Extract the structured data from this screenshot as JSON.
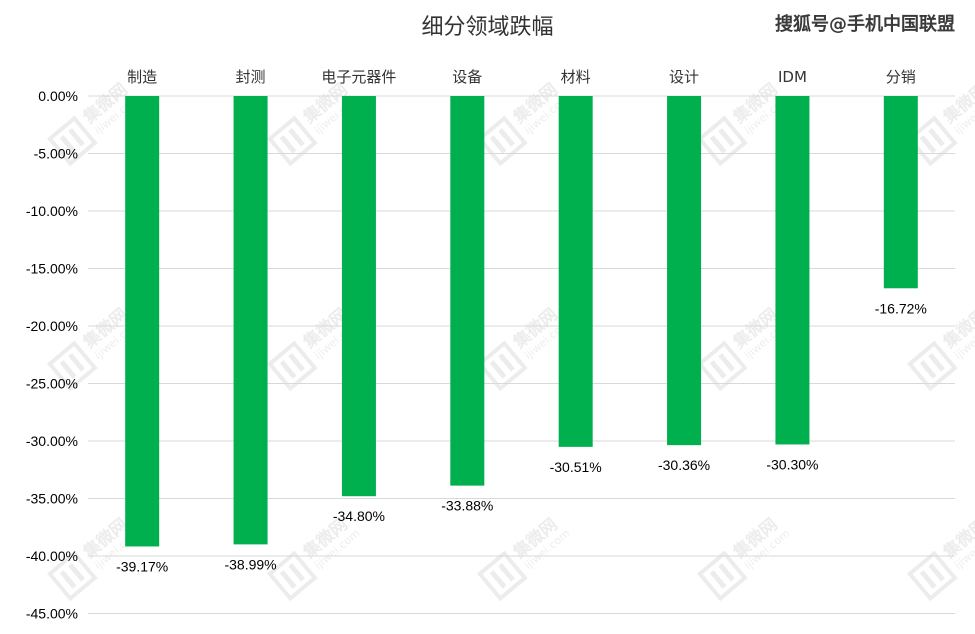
{
  "source": "搜狐号@手机中国联盟",
  "watermark": {
    "label": "集微网",
    "url": "ijiwei.com"
  },
  "colors": {
    "bar": "#00b04f",
    "grid": "#d9d9d9",
    "text": "#000000"
  },
  "chart_data": {
    "type": "bar",
    "title": "细分领域跌幅",
    "xlabel": "",
    "ylabel": "",
    "categories": [
      "制造",
      "封测",
      "电子元器件",
      "设备",
      "材料",
      "设计",
      "IDM",
      "分销"
    ],
    "values": [
      -39.17,
      -38.99,
      -34.8,
      -33.88,
      -30.51,
      -30.36,
      -30.3,
      -16.72
    ],
    "data_labels": [
      "-39.17%",
      "-38.99%",
      "-34.80%",
      "-33.88%",
      "-30.51%",
      "-30.36%",
      "-30.30%",
      "-16.72%"
    ],
    "ylim": [
      -45,
      0
    ],
    "yticks": [
      0,
      -5,
      -10,
      -15,
      -20,
      -25,
      -30,
      -35,
      -40,
      -45
    ],
    "ytick_labels": [
      "0.00%",
      "-5.00%",
      "-10.00%",
      "-15.00%",
      "-20.00%",
      "-25.00%",
      "-30.00%",
      "-35.00%",
      "-40.00%",
      "-45.00%"
    ],
    "category_axis_position": "top",
    "grid": true,
    "legend": "none"
  }
}
